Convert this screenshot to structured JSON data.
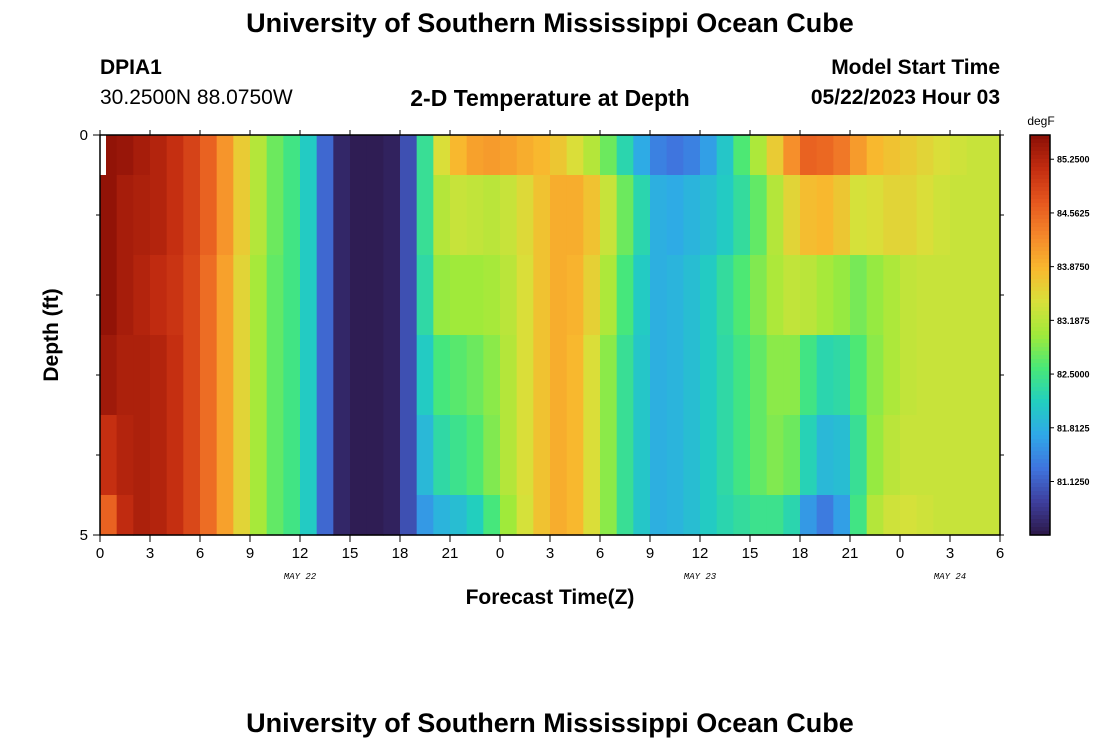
{
  "page": {
    "title": "University of Southern Mississippi Ocean Cube",
    "title_repeat": "University of Southern Mississippi Ocean Cube",
    "station_id": "DPIA1",
    "station_coords": "30.2500N  88.0750W",
    "subtitle": "2-D Temperature at Depth",
    "model_start_label": "Model Start Time",
    "model_start_value": "05/22/2023 Hour 03"
  },
  "chart_data": {
    "type": "heatmap",
    "title": "2-D Temperature at Depth",
    "xlabel": "Forecast Time(Z)",
    "ylabel": "Depth (ft)",
    "x_tick_labels": [
      "0",
      "3",
      "6",
      "9",
      "12",
      "15",
      "18",
      "21",
      "0",
      "3",
      "6",
      "9",
      "12",
      "15",
      "18",
      "21",
      "0",
      "3",
      "6"
    ],
    "date_labels": [
      {
        "label": "MAY 22",
        "at_hour": 12
      },
      {
        "label": "MAY 23",
        "at_hour": 36
      },
      {
        "label": "MAY 24",
        "at_hour": 51
      }
    ],
    "x_range_hours": [
      0,
      54
    ],
    "y_ticks": [
      "0",
      "5"
    ],
    "ylim": [
      0,
      5
    ],
    "depth_levels": [
      0,
      0.5,
      1.5,
      2.5,
      3.5,
      4.5
    ],
    "colorbar": {
      "unit": "degF",
      "labels": [
        "85.2500",
        "84.5625",
        "83.8750",
        "83.1875",
        "82.5000",
        "81.8125",
        "81.1250"
      ],
      "min": 80.44,
      "max": 85.56,
      "colors": [
        "#2c1848",
        "#3e3f9e",
        "#3f74de",
        "#2fa8e8",
        "#22cfbf",
        "#48e878",
        "#a0ea3a",
        "#d8e03a",
        "#f8b82e",
        "#f5862a",
        "#e5561e",
        "#c22c10",
        "#8a0f06"
      ]
    },
    "x_hours": [
      0,
      0.5,
      1,
      2,
      3,
      4,
      5,
      6,
      7,
      8,
      9,
      10,
      11,
      12,
      12.5,
      13,
      13.5,
      14,
      14.5,
      15,
      16,
      17,
      18,
      18.5,
      19,
      19.5,
      20,
      21,
      22,
      23,
      24,
      25,
      26,
      27,
      28,
      29,
      30,
      31,
      32,
      33,
      33.5,
      34,
      35,
      36,
      37,
      38,
      39,
      40,
      41,
      42,
      42.5,
      43,
      44,
      45,
      45.5,
      46,
      47,
      48,
      49,
      50,
      51,
      52,
      53,
      54
    ],
    "temps_by_depth": [
      [
        85.5,
        85.5,
        85.5,
        85.4,
        85.3,
        85.2,
        85.0,
        84.8,
        84.4,
        83.9,
        83.4,
        82.9,
        82.6,
        82.4,
        82.1,
        81.6,
        81.2,
        80.8,
        80.6,
        80.5,
        80.5,
        80.5,
        80.6,
        81.0,
        81.6,
        82.4,
        83.2,
        83.7,
        84.0,
        84.1,
        84.1,
        84.0,
        83.9,
        83.8,
        83.6,
        83.3,
        83.0,
        82.5,
        82.0,
        81.5,
        81.4,
        81.3,
        81.3,
        81.5,
        81.8,
        82.3,
        82.9,
        83.3,
        84.0,
        84.4,
        84.6,
        84.6,
        84.5,
        84.3,
        84.1,
        83.9,
        83.8,
        83.7,
        83.6,
        83.5,
        83.4,
        83.3,
        83.3,
        83.3
      ],
      [
        85.5,
        85.5,
        85.4,
        85.3,
        85.3,
        85.2,
        85.0,
        84.8,
        84.4,
        83.9,
        83.4,
        82.9,
        82.6,
        82.4,
        82.1,
        81.6,
        81.2,
        80.8,
        80.6,
        80.5,
        80.5,
        80.5,
        80.6,
        81.0,
        81.6,
        82.4,
        83.0,
        83.3,
        83.3,
        83.2,
        83.2,
        83.4,
        83.6,
        83.9,
        84.0,
        83.9,
        83.6,
        83.0,
        82.5,
        82.0,
        81.8,
        81.7,
        81.8,
        81.9,
        82.0,
        82.2,
        82.5,
        82.9,
        83.4,
        83.7,
        83.8,
        83.9,
        83.8,
        83.6,
        83.4,
        83.4,
        83.5,
        83.6,
        83.5,
        83.4,
        83.3,
        83.3,
        83.3,
        83.3
      ],
      [
        85.5,
        85.5,
        85.4,
        85.3,
        85.2,
        85.1,
        85.0,
        84.7,
        84.3,
        83.8,
        83.3,
        82.8,
        82.6,
        82.4,
        82.1,
        81.6,
        81.2,
        80.8,
        80.6,
        80.5,
        80.5,
        80.5,
        80.6,
        81.0,
        81.6,
        82.3,
        82.9,
        83.0,
        83.0,
        83.0,
        83.1,
        83.3,
        83.6,
        83.9,
        84.0,
        83.8,
        83.4,
        82.8,
        82.3,
        81.9,
        81.8,
        81.8,
        81.9,
        82.0,
        82.2,
        82.5,
        82.7,
        83.0,
        83.2,
        83.3,
        83.2,
        83.1,
        83.0,
        82.9,
        82.8,
        82.9,
        83.0,
        83.2,
        83.3,
        83.3,
        83.3,
        83.3,
        83.3,
        83.3
      ],
      [
        85.4,
        85.4,
        85.3,
        85.3,
        85.3,
        85.2,
        85.0,
        84.7,
        84.3,
        83.8,
        83.3,
        82.8,
        82.6,
        82.4,
        82.1,
        81.6,
        81.2,
        80.8,
        80.6,
        80.5,
        80.5,
        80.5,
        80.6,
        81.0,
        81.5,
        82.1,
        82.5,
        82.6,
        82.7,
        82.8,
        83.0,
        83.3,
        83.6,
        83.9,
        84.0,
        83.7,
        83.2,
        82.6,
        82.2,
        81.9,
        81.8,
        81.8,
        81.9,
        82.0,
        82.2,
        82.4,
        82.6,
        82.8,
        83.0,
        82.8,
        82.5,
        82.3,
        82.2,
        82.4,
        82.6,
        82.8,
        83.0,
        83.2,
        83.3,
        83.3,
        83.3,
        83.3,
        83.3,
        83.3
      ],
      [
        85.0,
        85.1,
        85.2,
        85.3,
        85.3,
        85.2,
        85.0,
        84.7,
        84.3,
        83.8,
        83.3,
        82.8,
        82.6,
        82.4,
        82.1,
        81.6,
        81.2,
        80.8,
        80.6,
        80.5,
        80.5,
        80.5,
        80.6,
        81.0,
        81.4,
        81.9,
        82.2,
        82.4,
        82.5,
        82.7,
        83.0,
        83.3,
        83.6,
        83.9,
        84.0,
        83.7,
        83.2,
        82.6,
        82.2,
        81.9,
        81.8,
        81.8,
        81.9,
        82.0,
        82.2,
        82.4,
        82.6,
        82.8,
        82.9,
        82.6,
        82.2,
        81.9,
        81.9,
        82.0,
        82.4,
        82.8,
        83.1,
        83.3,
        83.3,
        83.3,
        83.3,
        83.3,
        83.3,
        83.3
      ],
      [
        84.2,
        84.6,
        85.0,
        85.3,
        85.3,
        85.2,
        85.0,
        84.7,
        84.3,
        83.8,
        83.3,
        82.8,
        82.6,
        82.4,
        82.1,
        81.6,
        81.2,
        80.8,
        80.6,
        80.5,
        80.5,
        80.5,
        80.6,
        81.0,
        81.3,
        81.6,
        81.8,
        81.9,
        82.0,
        82.3,
        82.8,
        83.2,
        83.6,
        83.9,
        84.0,
        83.7,
        83.2,
        82.6,
        82.2,
        81.9,
        81.8,
        81.8,
        81.9,
        82.0,
        82.2,
        82.3,
        82.4,
        82.5,
        82.4,
        82.1,
        81.6,
        81.3,
        81.4,
        81.9,
        82.5,
        83.0,
        83.3,
        83.4,
        83.4,
        83.3,
        83.3,
        83.3,
        83.3,
        83.3
      ]
    ]
  }
}
